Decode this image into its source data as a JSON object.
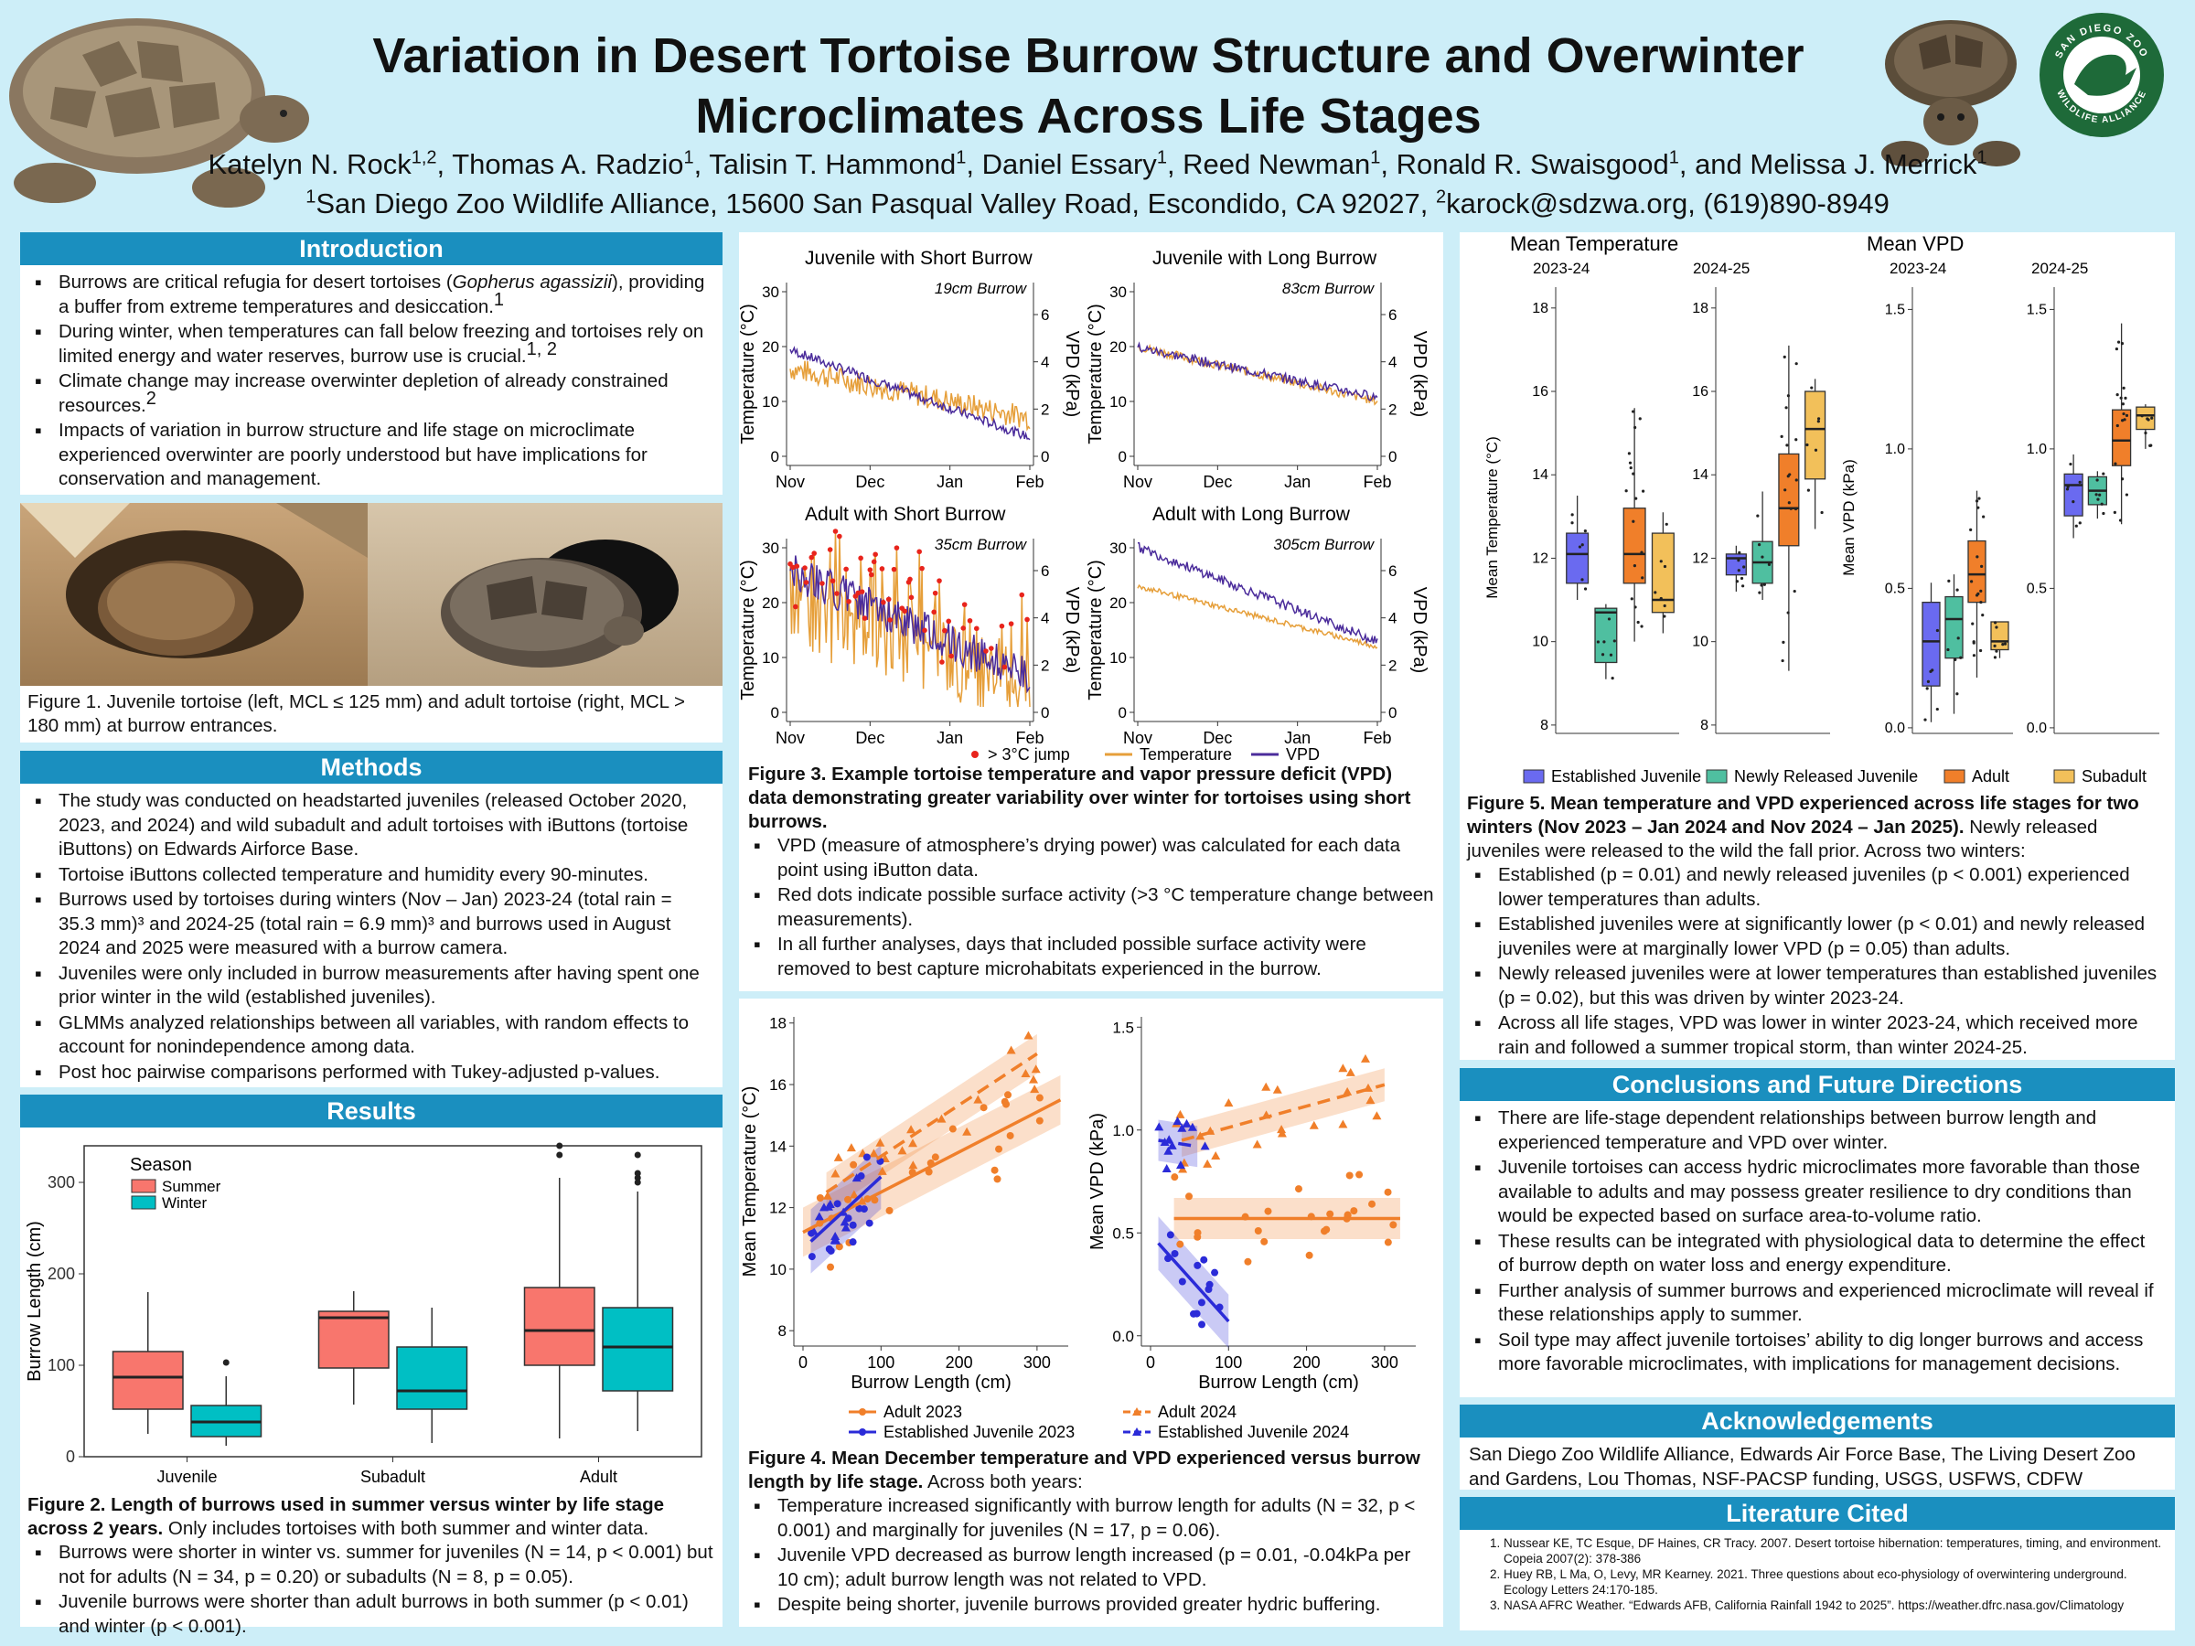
{
  "header": {
    "title_line1": "Variation in Desert Tortoise Burrow Structure and Overwinter",
    "title_line2": "Microclimates Across Life Stages",
    "authors": [
      {
        "name": "Katelyn N. Rock",
        "sup": "1,2"
      },
      {
        "name": "Thomas A. Radzio",
        "sup": "1"
      },
      {
        "name": "Talisin T. Hammond",
        "sup": "1"
      },
      {
        "name": "Daniel Essary",
        "sup": "1"
      },
      {
        "name": "Reed Newman",
        "sup": "1"
      },
      {
        "name": "Ronald R. Swaisgood",
        "sup": "1"
      },
      {
        "name": "Melissa J. Merrick",
        "sup": "1"
      }
    ],
    "authors_and": "and",
    "affil_sup1": "1",
    "affil_text": "San Diego Zoo Wildlife Alliance, 15600 San Pasqual Valley Road, Escondido, CA 92027, ",
    "affil_sup2": "2",
    "affil_contact": "karock@sdzwa.org, (619)890-8949",
    "logo_text_top": "SAN DIEGO ZOO",
    "logo_text_bottom": "WILDLIFE ALLIANCE"
  },
  "introduction": {
    "heading": "Introduction",
    "bullets": [
      [
        "Burrows are critical refugia for desert tortoises (",
        "Gopherus agassizii",
        "), providing a buffer from extreme temperatures and desiccation.",
        "1"
      ],
      [
        "During winter, when temperatures can fall below freezing and tortoises rely on limited energy and water reserves, burrow use is crucial.",
        "1, 2"
      ],
      [
        "Climate change may increase overwinter depletion of already constrained resources.",
        "2"
      ],
      [
        "Impacts of variation in burrow structure and life stage on microclimate experienced overwinter are poorly understood but have implications for conservation and management.",
        ""
      ]
    ]
  },
  "figure1": {
    "caption": "Figure 1. Juvenile tortoise (left, MCL ≤ 125 mm) and adult tortoise (right, MCL > 180 mm) at burrow entrances."
  },
  "methods": {
    "heading": "Methods",
    "bullets": [
      "The study was conducted on headstarted juveniles (released October 2020, 2023, and 2024) and wild subadult and adult tortoises with iButtons (tortoise iButtons) on Edwards Airforce Base.",
      "Tortoise iButtons collected temperature and humidity every 90-minutes.",
      "Burrows used by tortoises during winters (Nov – Jan) 2023-24 (total rain = 35.3 mm)³ and 2024-25 (total rain = 6.9 mm)³ and burrows used in August 2024 and 2025 were measured with a burrow camera.",
      "Juveniles were only included in burrow measurements after having spent one prior winter in the wild (established juveniles).",
      "GLMMs analyzed relationships between all variables, with random effects to account for nonindependence among data.",
      "Post hoc pairwise comparisons performed with Tukey-adjusted p-values."
    ]
  },
  "results": {
    "heading": "Results",
    "fig2_caption_bold": "Figure 2. Length of burrows used in summer versus winter by life stage across 2 years.",
    "fig2_caption_rest": " Only includes tortoises with both summer and winter data.",
    "bullets": [
      "Burrows were shorter in winter vs. summer for juveniles (N = 14, p < 0.001) but not for adults (N = 34, p = 0.20) or subadults (N = 8, p = 0.05).",
      "Juvenile burrows were shorter than adult burrows in both summer (p < 0.01) and winter (p < 0.001)."
    ]
  },
  "figure3": {
    "caption_bold": "Figure 3. Example tortoise temperature and vapor pressure deficit (VPD) data demonstrating greater variability over winter for tortoises using short burrows.",
    "bullets": [
      "VPD (measure of atmosphere’s drying power) was calculated for each data point using iButton data.",
      "Red dots indicate possible surface activity (>3 °C temperature change between measurements).",
      "In all further analyses, days that included possible surface activity were removed to best capture microhabitats experienced in the burrow."
    ]
  },
  "figure4": {
    "caption_bold": "Figure 4. Mean December temperature and VPD experienced versus burrow length by life stage.",
    "caption_rest": " Across both years:",
    "bullets": [
      "Temperature increased significantly with burrow length for adults (N = 32, p < 0.001) and marginally for juveniles (N = 17, p = 0.06).",
      "Juvenile VPD decreased as burrow length increased (p = 0.01, -0.04kPa per 10 cm); adult burrow length was not related to VPD.",
      "Despite being shorter, juvenile burrows provided greater hydric buffering."
    ]
  },
  "figure5": {
    "caption_bold": "Figure 5. Mean temperature and VPD experienced across life stages for two winters (Nov 2023 – Jan 2024 and Nov 2024 – Jan 2025).",
    "caption_rest": " Newly released juveniles were released to the wild the fall prior. Across two winters:",
    "bullets": [
      "Established (p = 0.01) and newly released juveniles (p < 0.001) experienced lower temperatures than adults.",
      "Established juveniles were at significantly lower (p < 0.01) and newly released juveniles were at marginally lower VPD (p = 0.05) than adults.",
      "Newly released juveniles were at lower temperatures than established juveniles (p = 0.02), but this was driven by winter 2023-24.",
      "Across all life stages, VPD was lower in winter 2023-24, which received more rain and followed a summer tropical storm, than winter 2024-25."
    ]
  },
  "conclusions": {
    "heading": "Conclusions and Future Directions",
    "bullets": [
      "There are life-stage dependent relationships between burrow length and experienced temperature and VPD over winter.",
      "Juvenile tortoises can access hydric microclimates more favorable than those available to adults and may possess greater resilience to dry conditions than would be expected based on surface area-to-volume ratio.",
      "These results can be integrated with physiological data to determine the effect of burrow depth on water loss and energy expenditure.",
      "Further analysis of summer burrows and experienced microclimate will reveal if these relationships apply to summer.",
      "Soil type may affect juvenile tortoises’ ability to dig longer burrows and access more favorable microclimates, with implications for management decisions."
    ]
  },
  "acknowledgements": {
    "heading": "Acknowledgements",
    "text": "San Diego Zoo Wildlife Alliance, Edwards Air Force Base, The Living Desert Zoo and Gardens, Lou Thomas, NSF-PACSP funding, USGS, USFWS, CDFW"
  },
  "literature": {
    "heading": "Literature Cited",
    "items": [
      "Nussear KE, TC Esque, DF Haines, CR Tracy. 2007. Desert tortoise hibernation: temperatures, timing, and environment. Copeia 2007(2): 378-386",
      "Huey RB, L Ma, O, Levy, MR Kearney. 2021. Three questions about eco-physiology of overwintering underground. Ecology Letters 24:170-185.",
      "NASA AFRC Weather. “Edwards AFB, California Rainfall 1942 to 2025”. https://weather.dfrc.nasa.gov/Climatology"
    ]
  },
  "colors": {
    "summer": "#f8766d",
    "winter": "#00bfc4",
    "temperature": "#e69f3a",
    "vpd": "#4b2c9b",
    "jump": "#e8241c",
    "adult": "#f07f2a",
    "juvenile": "#2b2bd8",
    "est_juv": "#6a6af0",
    "new_juv": "#4fbfa0",
    "subadult": "#f2c05a",
    "header_blue": "#1a8fbf"
  },
  "chart_data": [
    {
      "id": "figure2",
      "type": "boxplot",
      "legend_title": "Season",
      "legend": [
        "Summer",
        "Winter"
      ],
      "ylabel": "Burrow Length (cm)",
      "ylim": [
        0,
        340
      ],
      "yticks": [
        0,
        100,
        200,
        300
      ],
      "categories": [
        "Juvenile",
        "Subadult",
        "Adult"
      ],
      "boxes": [
        {
          "category": "Juvenile",
          "season": "Summer",
          "min": 25,
          "q1": 52,
          "median": 87,
          "q3": 115,
          "max": 180,
          "outliers": []
        },
        {
          "category": "Juvenile",
          "season": "Winter",
          "min": 12,
          "q1": 22,
          "median": 38,
          "q3": 56,
          "max": 88,
          "outliers": [
            103
          ]
        },
        {
          "category": "Subadult",
          "season": "Summer",
          "min": 57,
          "q1": 97,
          "median": 152,
          "q3": 159,
          "max": 181,
          "outliers": []
        },
        {
          "category": "Subadult",
          "season": "Winter",
          "min": 15,
          "q1": 52,
          "median": 72,
          "q3": 120,
          "max": 163,
          "outliers": []
        },
        {
          "category": "Adult",
          "season": "Summer",
          "min": 20,
          "q1": 100,
          "median": 138,
          "q3": 185,
          "max": 305,
          "outliers": [
            330,
            340
          ]
        },
        {
          "category": "Adult",
          "season": "Winter",
          "min": 28,
          "q1": 72,
          "median": 120,
          "q3": 163,
          "max": 290,
          "outliers": [
            300,
            305,
            310,
            330
          ]
        }
      ]
    },
    {
      "id": "figure3",
      "type": "line",
      "xticks": [
        "Nov",
        "Dec",
        "Jan",
        "Feb"
      ],
      "ylabel_left": "Temperature (°C)",
      "ylabel_right": "VPD (kPa)",
      "yticks_left": [
        0,
        10,
        20,
        30
      ],
      "yticks_right": [
        0,
        2,
        4,
        6
      ],
      "legend": [
        "> 3°C jump",
        "Temperature",
        "VPD"
      ],
      "panels": [
        {
          "title": "Juvenile with Short Burrow",
          "annotation": "19cm Burrow",
          "temp_start": 16,
          "temp_end": 7,
          "temp_noise": 2.2,
          "vpd_start": 4.5,
          "vpd_end": 0.8,
          "jumps": false
        },
        {
          "title": "Juvenile with Long Burrow",
          "annotation": "83cm Burrow",
          "temp_start": 20,
          "temp_end": 10,
          "temp_noise": 0.8,
          "vpd_start": 4.6,
          "vpd_end": 2.5,
          "jumps": false
        },
        {
          "title": "Adult with Short Burrow",
          "annotation": "35cm Burrow",
          "temp_start": 18,
          "temp_end": 5,
          "temp_noise": 7,
          "vpd_start": 6,
          "vpd_end": 1.5,
          "jumps": true
        },
        {
          "title": "Adult with Long Burrow",
          "annotation": "305cm Burrow",
          "temp_start": 23,
          "temp_end": 12,
          "temp_noise": 0.5,
          "vpd_start": 7,
          "vpd_end": 3,
          "jumps": false
        }
      ]
    },
    {
      "id": "figure4",
      "type": "scatter",
      "xlabel": "Burrow Length (cm)",
      "xticks": [
        0,
        100,
        200,
        300
      ],
      "legend": [
        "Adult 2023",
        "Adult 2024",
        "Established Juvenile 2023",
        "Established Juvenile 2024"
      ],
      "panels": [
        {
          "ylabel": "Mean Temperature (°C)",
          "ylim": [
            7.5,
            18.2
          ],
          "yticks": [
            8,
            10,
            12,
            14,
            16,
            18
          ],
          "fits": {
            "adult_2023": [
              [
                0,
                11.2
              ],
              [
                330,
                15.5
              ]
            ],
            "adult_2024": [
              [
                30,
                12.5
              ],
              [
                300,
                17.0
              ]
            ],
            "juv": [
              [
                10,
                10.9
              ],
              [
                100,
                13.0
              ]
            ]
          }
        },
        {
          "ylabel": "Mean VPD (kPa)",
          "ylim": [
            -0.05,
            1.55
          ],
          "yticks": [
            0.0,
            0.5,
            1.0,
            1.5
          ],
          "fits": {
            "adult_2023": [
              [
                30,
                0.57
              ],
              [
                320,
                0.57
              ]
            ],
            "adult_2024": [
              [
                40,
                0.95
              ],
              [
                300,
                1.22
              ]
            ],
            "juv": [
              [
                10,
                0.45
              ],
              [
                100,
                0.07
              ]
            ],
            "juv_2024": [
              [
                10,
                0.95
              ],
              [
                60,
                0.92
              ]
            ]
          }
        }
      ]
    },
    {
      "id": "figure5",
      "type": "boxplot",
      "legend": [
        "Established Juvenile",
        "Newly Released Juvenile",
        "Adult",
        "Subadult"
      ],
      "groups": [
        {
          "title": "Mean Temperature",
          "ylabel": "Mean Temperature (°C)",
          "ylim": [
            7.8,
            18.5
          ],
          "yticks": [
            8,
            10,
            12,
            14,
            16,
            18
          ],
          "years": [
            {
              "year": "2023-24",
              "boxes": [
                [
                  11.0,
                  11.4,
                  12.1,
                  12.6,
                  13.5
                ],
                [
                  9.1,
                  9.5,
                  10.7,
                  10.8,
                  10.9
                ],
                [
                  10.0,
                  11.4,
                  12.1,
                  13.2,
                  15.6
                ],
                [
                  10.2,
                  10.7,
                  11.0,
                  12.6,
                  13.1
                ]
              ]
            },
            {
              "year": "2024-25",
              "boxes": [
                [
                  11.2,
                  11.6,
                  12.0,
                  12.1,
                  12.3
                ],
                [
                  11.0,
                  11.4,
                  11.9,
                  12.4,
                  13.6
                ],
                [
                  9.3,
                  12.3,
                  13.2,
                  14.5,
                  17.1
                ],
                [
                  12.7,
                  13.9,
                  15.1,
                  16.0,
                  16.3
                ]
              ]
            }
          ]
        },
        {
          "title": "Mean VPD",
          "ylabel": "Mean VPD (kPa)",
          "ylim": [
            -0.02,
            1.58
          ],
          "yticks": [
            0.0,
            0.5,
            1.0,
            1.5
          ],
          "years": [
            {
              "year": "2023-24",
              "boxes": [
                [
                  0.02,
                  0.15,
                  0.31,
                  0.45,
                  0.52
                ],
                [
                  0.05,
                  0.25,
                  0.39,
                  0.47,
                  0.55
                ],
                [
                  0.18,
                  0.45,
                  0.55,
                  0.67,
                  0.85
                ],
                [
                  0.25,
                  0.28,
                  0.31,
                  0.38,
                  0.38
                ]
              ]
            },
            {
              "year": "2024-25",
              "boxes": [
                [
                  0.68,
                  0.76,
                  0.87,
                  0.91,
                  0.98
                ],
                [
                  0.75,
                  0.8,
                  0.85,
                  0.9,
                  0.92
                ],
                [
                  0.73,
                  0.94,
                  1.03,
                  1.14,
                  1.45
                ],
                [
                  1.0,
                  1.07,
                  1.12,
                  1.15,
                  1.16
                ]
              ]
            }
          ]
        }
      ]
    }
  ]
}
